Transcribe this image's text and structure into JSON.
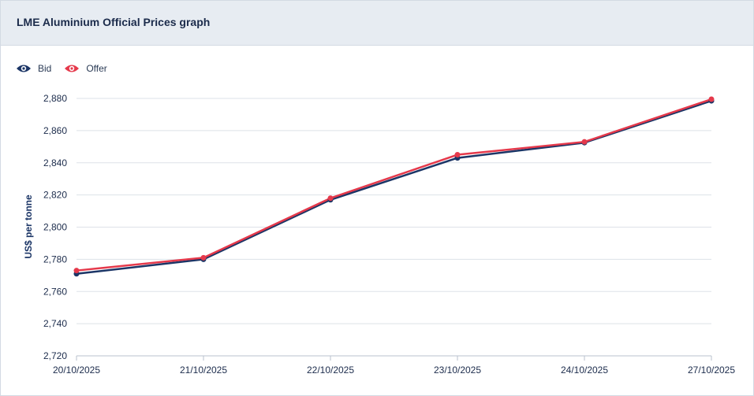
{
  "header": {
    "title": "LME Aluminium Official Prices graph"
  },
  "legend": [
    {
      "label": "Bid",
      "icon": "eye-icon",
      "color": "#1b3566"
    },
    {
      "label": "Offer",
      "icon": "eye-icon",
      "color": "#e5394b"
    }
  ],
  "chart_data": {
    "type": "line",
    "title": "LME Aluminium Official Prices graph",
    "xlabel": "",
    "ylabel": "US$ per tonne",
    "categories": [
      "20/10/2025",
      "21/10/2025",
      "22/10/2025",
      "23/10/2025",
      "24/10/2025",
      "27/10/2025"
    ],
    "series": [
      {
        "name": "Bid",
        "color": "#1b3566",
        "values": [
          2771,
          2780,
          2817,
          2843,
          2852.5,
          2878.5
        ]
      },
      {
        "name": "Offer",
        "color": "#e5394b",
        "values": [
          2773,
          2781,
          2818,
          2845,
          2853,
          2879.5
        ]
      }
    ],
    "ylim": [
      2720,
      2880
    ],
    "yticks": [
      2720,
      2740,
      2760,
      2780,
      2800,
      2820,
      2840,
      2860,
      2880
    ],
    "ytick_labels": [
      "2,720",
      "2,740",
      "2,760",
      "2,780",
      "2,800",
      "2,820",
      "2,840",
      "2,860",
      "2,880"
    ],
    "grid": true,
    "legend_position": "top-left"
  }
}
